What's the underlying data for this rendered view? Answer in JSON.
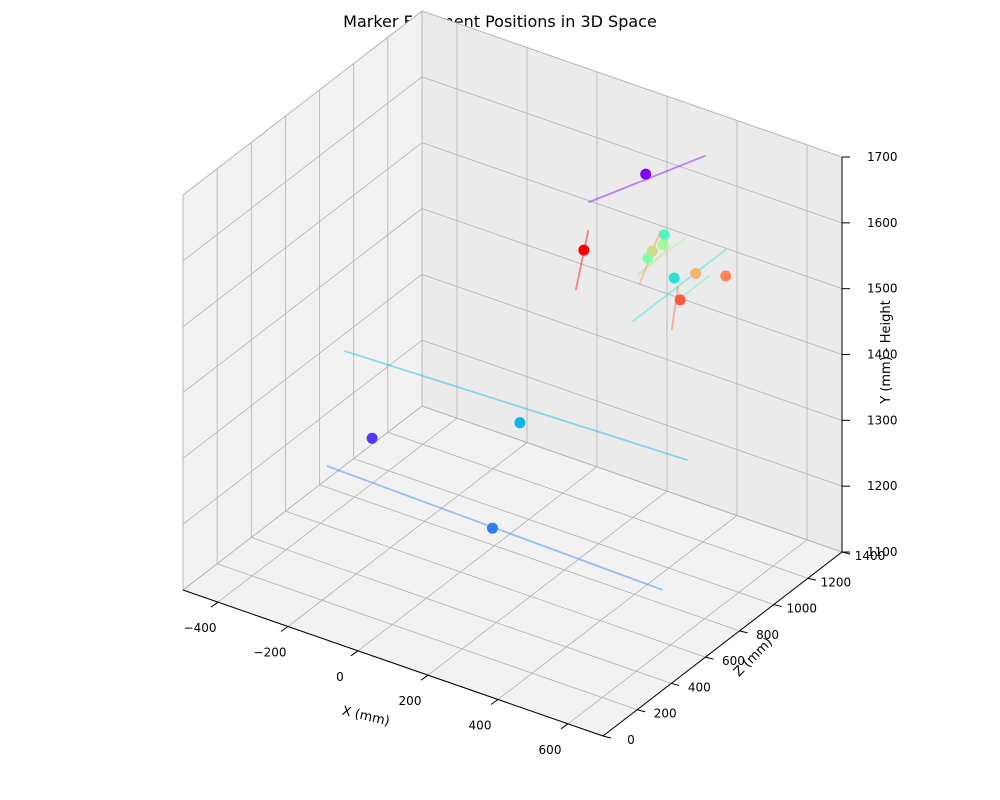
{
  "chart_data": {
    "type": "scatter",
    "title": "Marker Fragment Positions in 3D Space",
    "xlabel": "X (mm)",
    "zlabel": "Z (mm)",
    "ylabel": "Y (mm) - Height",
    "xlim": [
      -500,
      700
    ],
    "zlim": [
      0,
      1400
    ],
    "ylim": [
      1100,
      1700
    ],
    "x_ticks": [
      -400,
      -200,
      0,
      200,
      400,
      600
    ],
    "z_ticks": [
      0,
      200,
      400,
      600,
      800,
      1000,
      1200,
      1400
    ],
    "y_ticks": [
      1100,
      1200,
      1300,
      1400,
      1500,
      1600,
      1700
    ],
    "x_tick_labels": [
      "−400",
      "−200",
      "0",
      "200",
      "400",
      "600"
    ],
    "z_tick_labels": [
      "0",
      "200",
      "400",
      "600",
      "800",
      "1000",
      "1200",
      "1400"
    ],
    "y_tick_labels": [
      "1100",
      "1200",
      "1300",
      "1400",
      "1500",
      "1600",
      "1700"
    ],
    "grid": true,
    "points": [
      {
        "x": 285,
        "z": 1101,
        "y": 1657,
        "color": "#8000ff"
      },
      {
        "x": -285,
        "z": 667,
        "y": 1237,
        "color": "#5a36fd"
      },
      {
        "x": 138,
        "z": 505,
        "y": 1211,
        "color": "#2f7ff2"
      },
      {
        "x": 153,
        "z": 635,
        "y": 1348,
        "color": "#0fb6e6"
      },
      {
        "x": 425,
        "z": 981,
        "y": 1549,
        "color": "#2ae5d6"
      },
      {
        "x": 322,
        "z": 1135,
        "y": 1565,
        "color": "#55f5c2"
      },
      {
        "x": 300,
        "z": 1083,
        "y": 1536,
        "color": "#7dfeae"
      },
      {
        "x": 314,
        "z": 1142,
        "y": 1547,
        "color": "#a4f89a"
      },
      {
        "x": 298,
        "z": 1113,
        "y": 1540,
        "color": "#ccdd86"
      },
      {
        "x": 400,
        "z": 1158,
        "y": 1516,
        "color": "#f2b76f"
      },
      {
        "x": 484,
        "z": 1162,
        "y": 1527,
        "color": "#ff8559"
      },
      {
        "x": 442,
        "z": 981,
        "y": 1519,
        "color": "#ff5a3f"
      },
      {
        "x": 201,
        "z": 911,
        "y": 1564,
        "color": "#ff0000"
      }
    ],
    "trails": [
      {
        "color": "#8000ff",
        "from": {
          "x": 120,
          "z": 1104,
          "y": 1583
        },
        "to": {
          "x": 455,
          "z": 1104,
          "y": 1716
        }
      },
      {
        "color": "#0fb6e6",
        "from": {
          "x": -346,
          "z": 629,
          "y": 1366
        },
        "to": {
          "x": 629,
          "z": 641,
          "y": 1378
        }
      },
      {
        "color": "#2f7ff2",
        "from": {
          "x": -335,
          "z": 505,
          "y": 1218
        },
        "to": {
          "x": 624,
          "z": 505,
          "y": 1207
        }
      },
      {
        "color": "#2ae5d6",
        "from": {
          "x": 306,
          "z": 981,
          "y": 1461
        },
        "to": {
          "x": 575,
          "z": 981,
          "y": 1621
        }
      },
      {
        "color": "#a4f89a",
        "from": {
          "x": 240,
          "z": 1148,
          "y": 1488
        },
        "to": {
          "x": 380,
          "z": 1148,
          "y": 1570
        }
      },
      {
        "color": "#55f5c2",
        "from": {
          "x": 366,
          "z": 1113,
          "y": 1476
        },
        "to": {
          "x": 463,
          "z": 1113,
          "y": 1534
        }
      },
      {
        "color": "#ccdd86",
        "from": {
          "x": 271,
          "z": 1085,
          "y": 1503
        },
        "to": {
          "x": 363,
          "z": 1085,
          "y": 1565
        }
      },
      {
        "color": "#ff5a3f",
        "from": {
          "x": 418,
          "z": 981,
          "y": 1469
        },
        "to": {
          "x": 436,
          "z": 981,
          "y": 1538
        }
      },
      {
        "color": "#ff8559",
        "from": {
          "x": 264,
          "z": 1107,
          "y": 1484
        },
        "to": {
          "x": 324,
          "z": 1107,
          "y": 1577
        }
      },
      {
        "color": "#ff0000",
        "from": {
          "x": 178,
          "z": 911,
          "y": 1499
        },
        "to": {
          "x": 214,
          "z": 911,
          "y": 1597
        }
      }
    ]
  }
}
